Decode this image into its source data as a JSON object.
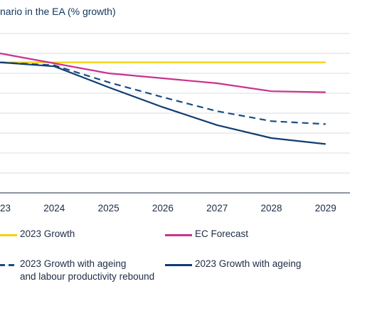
{
  "chart_data": {
    "type": "line",
    "title": "nario in the EA (% growth)",
    "xlabel": "",
    "ylabel": "",
    "x": [
      "23",
      "2024",
      "2025",
      "2026",
      "2027",
      "2028",
      "2029"
    ],
    "ylim": [
      0,
      8
    ],
    "grid": true,
    "legend_position": "bottom",
    "series": [
      {
        "name": "2023 Growth",
        "color": "#f2d10f",
        "dash": false,
        "values": [
          6.55,
          6.55,
          6.55,
          6.55,
          6.55,
          6.55,
          6.55
        ]
      },
      {
        "name": "EC Forecast",
        "color": "#c8338f",
        "dash": false,
        "values": [
          7.0,
          6.5,
          6.0,
          5.75,
          5.5,
          5.1,
          5.05
        ]
      },
      {
        "name": "2023 Growth with ageing\nand labour productivity rebound",
        "color": "#1a4d85",
        "dash": true,
        "values": [
          6.55,
          6.4,
          5.55,
          4.8,
          4.1,
          3.6,
          3.45
        ]
      },
      {
        "name": "2023 Growth with ageing",
        "color": "#0f3e72",
        "dash": false,
        "values": [
          6.55,
          6.35,
          5.3,
          4.3,
          3.4,
          2.75,
          2.45
        ]
      }
    ]
  }
}
